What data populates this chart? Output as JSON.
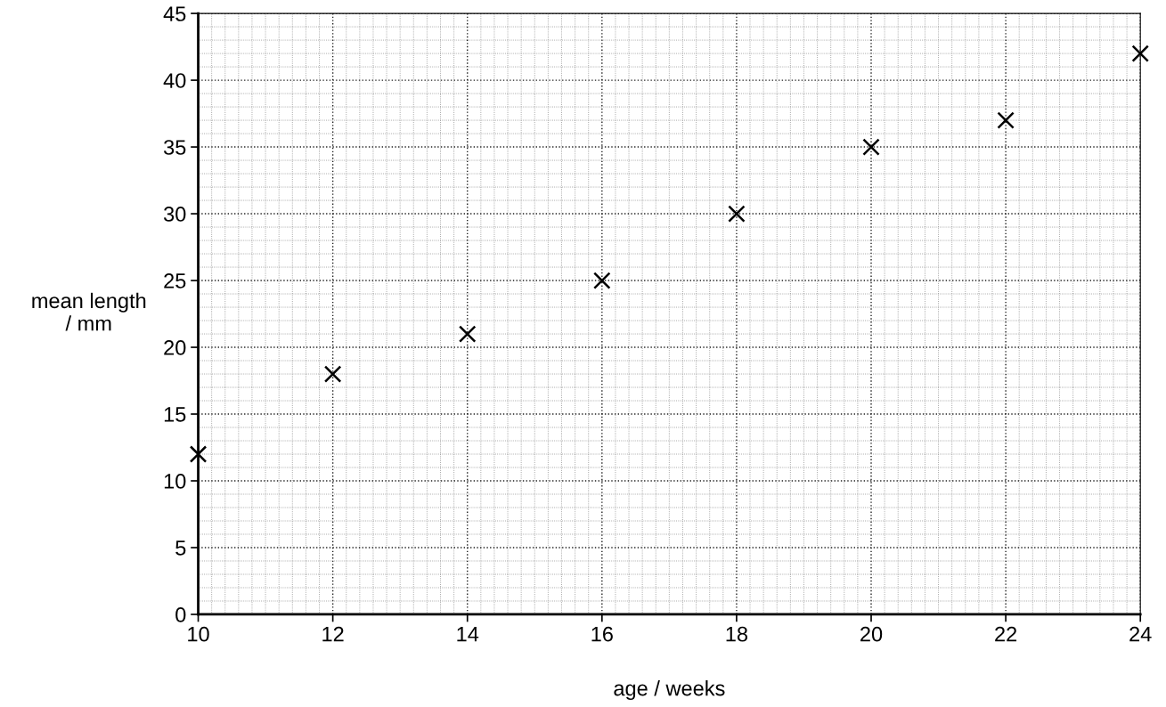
{
  "chart_data": {
    "type": "scatter",
    "xlabel": "age / weeks",
    "ylabel": "mean length\n/ mm",
    "x": [
      10,
      12,
      14,
      16,
      18,
      20,
      22,
      24
    ],
    "series": [
      {
        "color": "#000000",
        "values": [
          12,
          18,
          21,
          25,
          30,
          35,
          37,
          42
        ]
      }
    ],
    "marker": "cross",
    "grid": true,
    "xlim": [
      10,
      24
    ],
    "xticks": [
      10,
      12,
      14,
      16,
      18,
      20,
      22,
      24
    ],
    "ylim": [
      0,
      45
    ],
    "yticks": [
      0,
      5,
      10,
      15,
      20,
      25,
      30,
      35,
      40,
      45
    ]
  }
}
